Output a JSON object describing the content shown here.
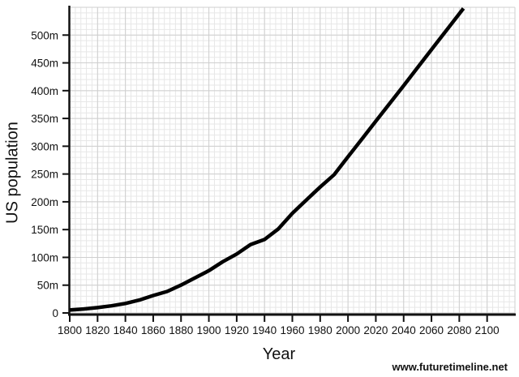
{
  "page": {
    "credit": "www.futuretimeline.net"
  },
  "chart_data": {
    "type": "line",
    "title": "",
    "xlabel": "Year",
    "ylabel": "US population",
    "xlim": [
      1800,
      2120
    ],
    "ylim": [
      0,
      550
    ],
    "x_major_step": 20,
    "y_major_step": 50,
    "x_minor_step": 4,
    "y_minor_step": 10,
    "grid": "major+minor",
    "legend_position": "none",
    "x_ticks": [
      1800,
      1820,
      1840,
      1860,
      1880,
      1900,
      1920,
      1940,
      1960,
      1980,
      2000,
      2020,
      2040,
      2060,
      2080,
      2100
    ],
    "x_tick_labels": [
      "1800",
      "1820",
      "1840",
      "1860",
      "1880",
      "1900",
      "1920",
      "1940",
      "1960",
      "1980",
      "2000",
      "2020",
      "2040",
      "2060",
      "2080",
      "2100"
    ],
    "y_ticks": [
      0,
      50,
      100,
      150,
      200,
      250,
      300,
      350,
      400,
      450,
      500
    ],
    "y_tick_labels": [
      "0",
      "50m",
      "100m",
      "150m",
      "200m",
      "250m",
      "300m",
      "350m",
      "400m",
      "450m",
      "500m"
    ],
    "series": [
      {
        "name": "US population (millions)",
        "x": [
          1800,
          1810,
          1820,
          1830,
          1840,
          1850,
          1860,
          1870,
          1880,
          1890,
          1900,
          1910,
          1920,
          1930,
          1940,
          1950,
          1960,
          1970,
          1980,
          1990,
          2000,
          2010,
          2020,
          2040,
          2060,
          2083
        ],
        "y": [
          5.3,
          7.2,
          9.6,
          12.9,
          17.1,
          23.2,
          31.4,
          38.6,
          50.2,
          63.0,
          76.2,
          92.2,
          106.0,
          123.2,
          132.2,
          151.3,
          179.3,
          203.2,
          226.5,
          248.7,
          281.0,
          313.0,
          345.0,
          409.0,
          474.0,
          548.0
        ]
      }
    ],
    "colors": {
      "line": "#000000",
      "axis": "#111111",
      "grid_minor": "#e7e7e7",
      "grid_major": "#cfcfcf",
      "text": "#111111",
      "background": "#ffffff"
    }
  }
}
